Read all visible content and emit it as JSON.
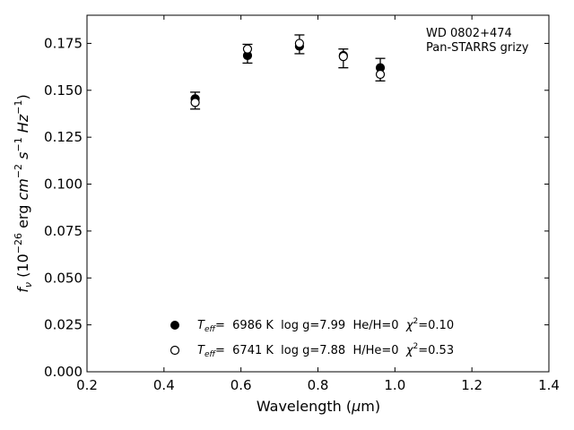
{
  "chart_data": {
    "type": "scatter",
    "title": "",
    "xlabel": "Wavelength (μm)",
    "ylabel": "f_ν (10^-26 erg cm^-2 s^-1 Hz^-1)",
    "xlim": [
      0.2,
      1.4
    ],
    "ylim": [
      0.0,
      0.19
    ],
    "x_ticks": [
      0.2,
      0.4,
      0.6,
      0.8,
      1.0,
      1.2,
      1.4
    ],
    "y_ticks": [
      0.0,
      0.025,
      0.05,
      0.075,
      0.1,
      0.125,
      0.15,
      0.175
    ],
    "x_tick_labels": [
      "0.2",
      "0.4",
      "0.6",
      "0.8",
      "1.0",
      "1.2",
      "1.4"
    ],
    "y_tick_labels": [
      "0.000",
      "0.025",
      "0.050",
      "0.075",
      "0.100",
      "0.125",
      "0.150",
      "0.175"
    ],
    "grid": false,
    "annotation_lines": [
      "WD 0802+474",
      "Pan-STARRS grizy"
    ],
    "legend_position": "bottom-center",
    "observed": {
      "x": [
        0.481,
        0.617,
        0.752,
        0.866,
        0.962
      ],
      "y": [
        0.1445,
        0.1695,
        0.1745,
        0.167,
        0.161
      ],
      "yerr": [
        0.0045,
        0.005,
        0.005,
        0.005,
        0.006
      ]
    },
    "series": [
      {
        "name": "T_eff= 6986 K log g=7.99 He/H=0 χ²=0.10",
        "marker": "filled",
        "x": [
          0.481,
          0.617,
          0.752,
          0.866,
          0.962
        ],
        "y": [
          0.1455,
          0.1685,
          0.1735,
          0.1685,
          0.162
        ]
      },
      {
        "name": "T_eff= 6741 K log g=7.88 H/He=0 χ²=0.53",
        "marker": "open",
        "x": [
          0.481,
          0.617,
          0.752,
          0.866,
          0.962
        ],
        "y": [
          0.1435,
          0.172,
          0.175,
          0.168,
          0.1585
        ]
      }
    ],
    "legend": [
      {
        "teff_label": "T",
        "teff_sub": "eff",
        "rest": "=  6986 K  log g=7.99  He/H=0  ",
        "chi_label": "χ",
        "chi_sup": "2",
        "chi_val": "=0.10"
      },
      {
        "teff_label": "T",
        "teff_sub": "eff",
        "rest": "=  6741 K  log g=7.88  H/He=0  ",
        "chi_label": "χ",
        "chi_sup": "2",
        "chi_val": "=0.53"
      }
    ]
  }
}
